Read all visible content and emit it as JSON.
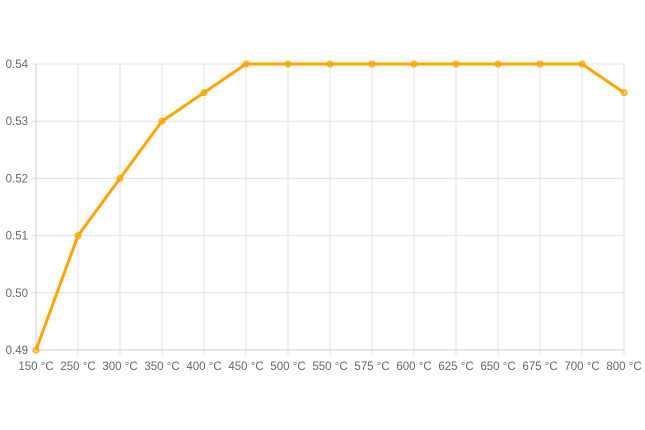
{
  "chart_data": {
    "type": "line",
    "categories": [
      "150 °C",
      "250 °C",
      "300 °C",
      "350 °C",
      "400 °C",
      "450 °C",
      "500 °C",
      "550 °C",
      "575 °C",
      "600 °C",
      "625 °C",
      "650 °C",
      "675 °C",
      "700 °C",
      "800 °C"
    ],
    "series": [
      {
        "values": [
          0.49,
          0.51,
          0.52,
          0.53,
          0.535,
          0.54,
          0.54,
          0.54,
          0.54,
          0.54,
          0.54,
          0.54,
          0.54,
          0.54,
          0.535
        ],
        "color": "#FFA500"
      }
    ],
    "yticks": [
      "0.49",
      "0.50",
      "0.51",
      "0.52",
      "0.53",
      "0.54"
    ],
    "ylim": [
      0.49,
      0.54
    ],
    "grid": true,
    "title": "",
    "xlabel": "",
    "ylabel": ""
  }
}
